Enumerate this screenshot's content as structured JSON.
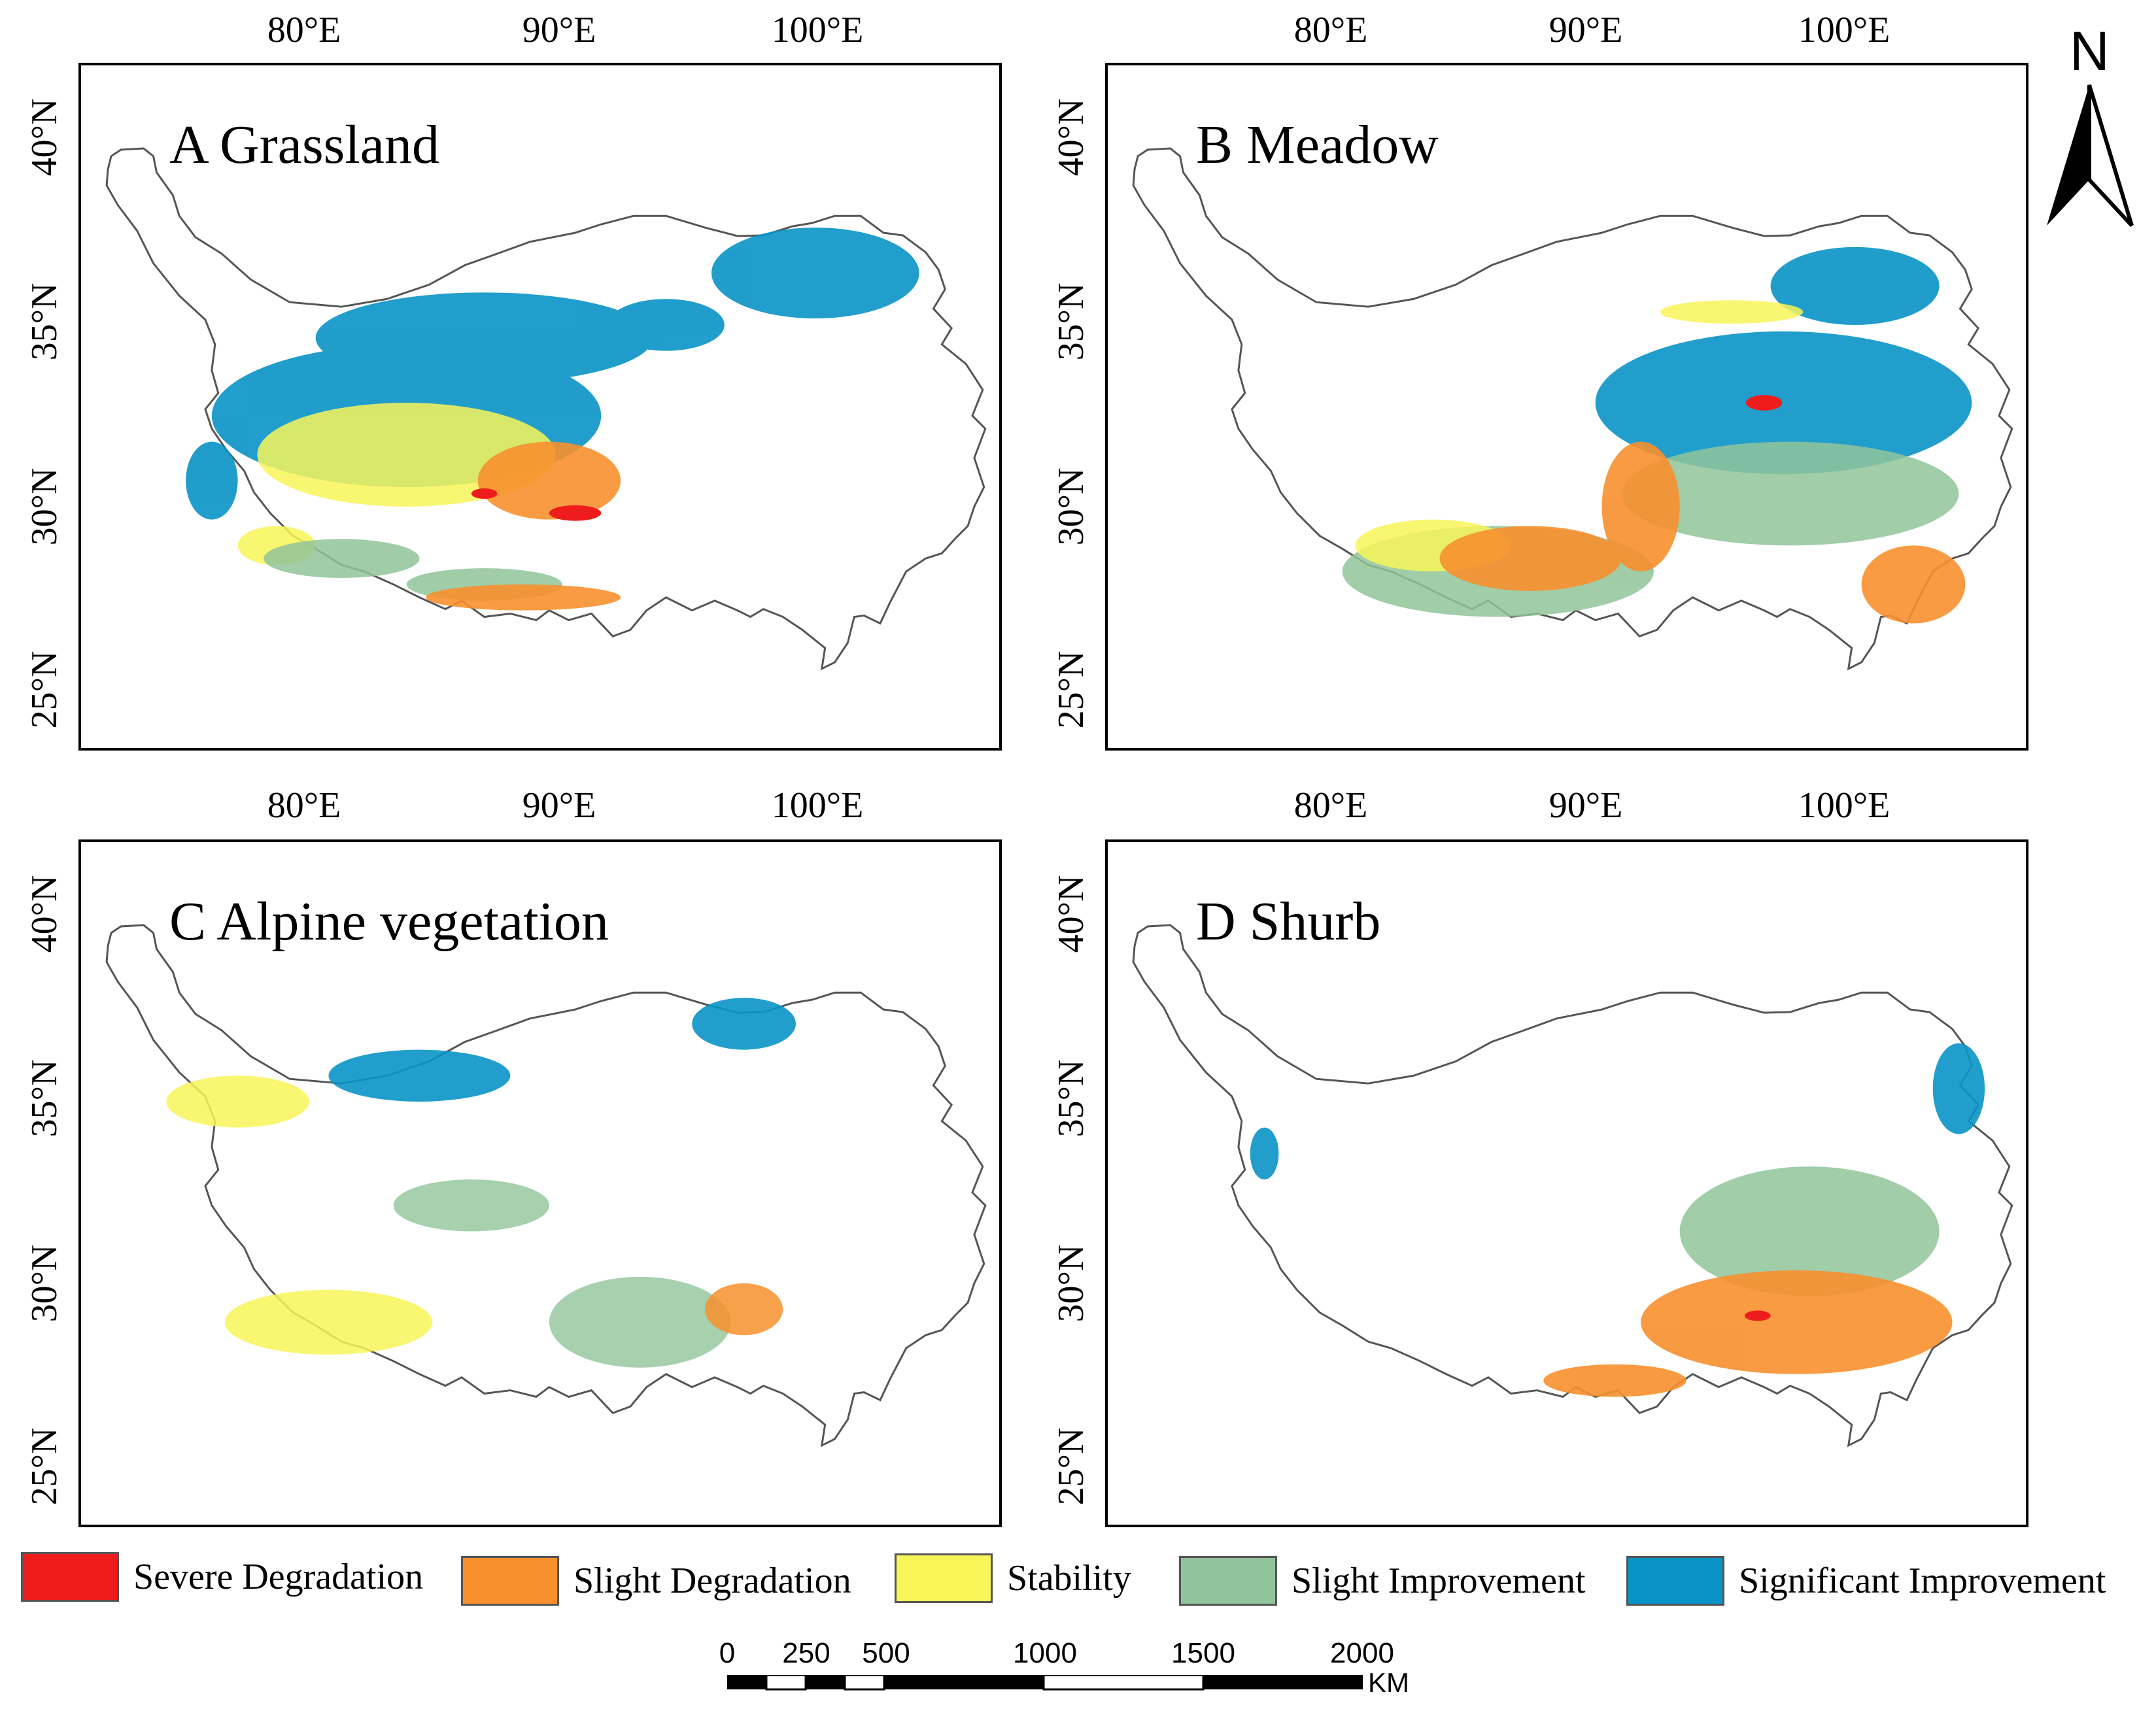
{
  "panels": [
    {
      "id": "A",
      "title": "A Grassland"
    },
    {
      "id": "B",
      "title": "B Meadow"
    },
    {
      "id": "C",
      "title": "C Alpine vegetation"
    },
    {
      "id": "D",
      "title": "D Shurb"
    }
  ],
  "axes": {
    "lon_labels": [
      "80°E",
      "90°E",
      "100°E"
    ],
    "lat_labels": [
      "40°N",
      "35°N",
      "30°N",
      "25°N"
    ]
  },
  "legend": [
    {
      "label": "Severe Degradation",
      "color": "#ee1c1c"
    },
    {
      "label": "Slight Degradation",
      "color": "#f7902d"
    },
    {
      "label": "Stability",
      "color": "#f8f558"
    },
    {
      "label": "Slight Improvement",
      "color": "#90c49a"
    },
    {
      "label": "Significant Improvement",
      "color": "#0a93c7"
    }
  ],
  "scale_bar": {
    "ticks": [
      "0",
      "250",
      "500",
      "1000",
      "1500",
      "2000"
    ],
    "unit": "KM"
  },
  "north_arrow": {
    "label": "N"
  }
}
